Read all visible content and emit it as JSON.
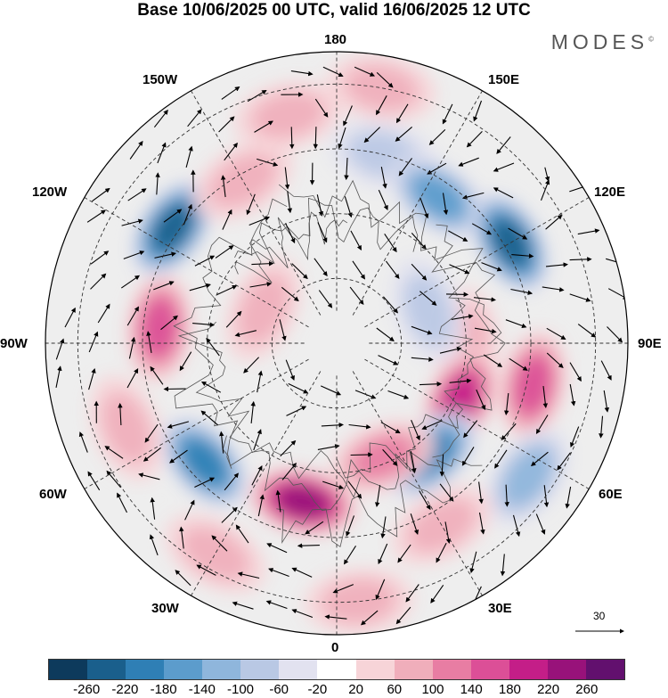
{
  "title": "Base 10/06/2025 00 UTC, valid 16/06/2025 12 UTC",
  "brand": "MODES",
  "brand_mark": "©",
  "longitude_labels": {
    "top": "180",
    "top_left": "150W",
    "top_right": "150E",
    "upper_left": "120W",
    "upper_right": "120E",
    "left": "90W",
    "right": "90E",
    "lower_left": "60W",
    "lower_right": "60E",
    "bottom_left": "30W",
    "bottom_right": "30E",
    "bottom": "0"
  },
  "reference_vector": "30",
  "colorbar": {
    "colors": [
      "#0d3a5c",
      "#1a5f8c",
      "#2f7fb5",
      "#5c9ccc",
      "#8fb6dc",
      "#b9c8e4",
      "#e2e2f0",
      "#ffffff",
      "#f7d4d8",
      "#f0aebb",
      "#e87da3",
      "#dc4f97",
      "#c41e88",
      "#98127a",
      "#62106e"
    ],
    "ticks": [
      "-260",
      "-220",
      "-180",
      "-140",
      "-100",
      "-60",
      "-20",
      "20",
      "60",
      "100",
      "140",
      "180",
      "220",
      "260"
    ]
  },
  "anomaly_blobs": [
    {
      "lon": 166,
      "colat": 60,
      "value": -60
    },
    {
      "lon": 145,
      "colat": 55,
      "value": -140
    },
    {
      "lon": 120,
      "colat": 62,
      "value": -220
    },
    {
      "lon": 90,
      "colat": 40,
      "value": 60
    },
    {
      "lon": 78,
      "colat": 62,
      "value": 140
    },
    {
      "lon": 65,
      "colat": 42,
      "value": 180
    },
    {
      "lon": 55,
      "colat": 72,
      "value": -100
    },
    {
      "lon": 40,
      "colat": 45,
      "value": -180
    },
    {
      "lon": 30,
      "colat": 65,
      "value": 60
    },
    {
      "lon": 22,
      "colat": 38,
      "value": 100
    },
    {
      "lon": 5,
      "colat": 80,
      "value": 60
    },
    {
      "lon": -12,
      "colat": 50,
      "value": 220
    },
    {
      "lon": -30,
      "colat": 75,
      "value": 60
    },
    {
      "lon": -48,
      "colat": 55,
      "value": -180
    },
    {
      "lon": -68,
      "colat": 70,
      "value": 60
    },
    {
      "lon": -95,
      "colat": 55,
      "value": 140
    },
    {
      "lon": -125,
      "colat": 62,
      "value": -220
    },
    {
      "lon": -150,
      "colat": 58,
      "value": 60
    },
    {
      "lon": -168,
      "colat": 72,
      "value": 60
    },
    {
      "lon": -115,
      "colat": 25,
      "value": 60
    },
    {
      "lon": 110,
      "colat": 30,
      "value": -60
    },
    {
      "lon": 170,
      "colat": 80,
      "value": 60
    }
  ]
}
